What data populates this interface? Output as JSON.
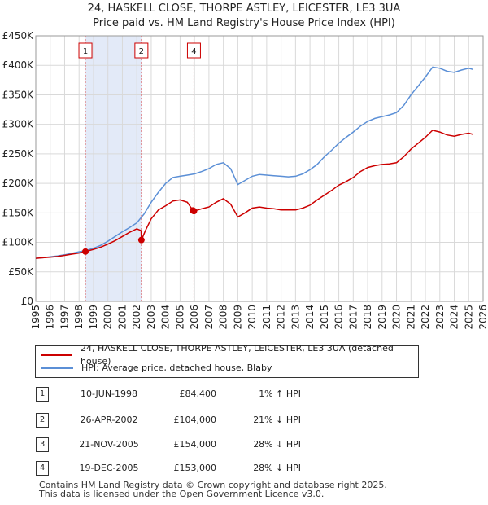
{
  "chart_data": {
    "type": "line",
    "title": "24, HASKELL CLOSE, THORPE ASTLEY, LEICESTER, LE3 3UA",
    "subtitle": "Price paid vs. HM Land Registry's House Price Index (HPI)",
    "x_range": [
      1995,
      2026
    ],
    "ylim": [
      0,
      450000
    ],
    "y_ticks": [
      {
        "value": 0,
        "label": "£0"
      },
      {
        "value": 50000,
        "label": "£50K"
      },
      {
        "value": 100000,
        "label": "£100K"
      },
      {
        "value": 150000,
        "label": "£150K"
      },
      {
        "value": 200000,
        "label": "£200K"
      },
      {
        "value": 250000,
        "label": "£250K"
      },
      {
        "value": 300000,
        "label": "£300K"
      },
      {
        "value": 350000,
        "label": "£350K"
      },
      {
        "value": 400000,
        "label": "£400K"
      },
      {
        "value": 450000,
        "label": "£450K"
      }
    ],
    "x_ticks": [
      "1995",
      "1996",
      "1997",
      "1998",
      "1999",
      "2000",
      "2001",
      "2002",
      "2003",
      "2004",
      "2005",
      "2006",
      "2007",
      "2008",
      "2009",
      "2010",
      "2011",
      "2012",
      "2013",
      "2014",
      "2015",
      "2016",
      "2017",
      "2018",
      "2019",
      "2020",
      "2021",
      "2022",
      "2023",
      "2024",
      "2025",
      "2026"
    ],
    "grid": true,
    "highlight_span": [
      1998.44,
      2002.32
    ],
    "series": [
      {
        "name": "24, HASKELL CLOSE, THORPE ASTLEY, LEICESTER, LE3 3UA (detached house)",
        "color": "#cc0000",
        "points": [
          [
            1995.0,
            73000
          ],
          [
            1995.5,
            74000
          ],
          [
            1996.0,
            75000
          ],
          [
            1996.5,
            76000
          ],
          [
            1997.0,
            78000
          ],
          [
            1997.5,
            80000
          ],
          [
            1998.0,
            82000
          ],
          [
            1998.44,
            84400
          ],
          [
            1999.0,
            88000
          ],
          [
            1999.5,
            92000
          ],
          [
            2000.0,
            97000
          ],
          [
            2000.5,
            103000
          ],
          [
            2001.0,
            110000
          ],
          [
            2001.5,
            117000
          ],
          [
            2002.0,
            123000
          ],
          [
            2002.3,
            120000
          ],
          [
            2002.32,
            104000
          ],
          [
            2002.6,
            120000
          ],
          [
            2003.0,
            140000
          ],
          [
            2003.5,
            155000
          ],
          [
            2004.0,
            162000
          ],
          [
            2004.5,
            170000
          ],
          [
            2005.0,
            172000
          ],
          [
            2005.5,
            168000
          ],
          [
            2005.89,
            154000
          ],
          [
            2005.96,
            153000
          ],
          [
            2006.5,
            157000
          ],
          [
            2007.0,
            160000
          ],
          [
            2007.5,
            168000
          ],
          [
            2008.0,
            174000
          ],
          [
            2008.5,
            165000
          ],
          [
            2009.0,
            143000
          ],
          [
            2009.5,
            150000
          ],
          [
            2010.0,
            158000
          ],
          [
            2010.5,
            160000
          ],
          [
            2011.0,
            158000
          ],
          [
            2011.5,
            157000
          ],
          [
            2012.0,
            155000
          ],
          [
            2012.5,
            155000
          ],
          [
            2013.0,
            155000
          ],
          [
            2013.5,
            158000
          ],
          [
            2014.0,
            163000
          ],
          [
            2014.5,
            172000
          ],
          [
            2015.0,
            180000
          ],
          [
            2015.5,
            188000
          ],
          [
            2016.0,
            197000
          ],
          [
            2016.5,
            203000
          ],
          [
            2017.0,
            210000
          ],
          [
            2017.5,
            220000
          ],
          [
            2018.0,
            227000
          ],
          [
            2018.5,
            230000
          ],
          [
            2019.0,
            232000
          ],
          [
            2019.5,
            233000
          ],
          [
            2020.0,
            235000
          ],
          [
            2020.5,
            245000
          ],
          [
            2021.0,
            258000
          ],
          [
            2021.5,
            268000
          ],
          [
            2022.0,
            278000
          ],
          [
            2022.5,
            290000
          ],
          [
            2023.0,
            287000
          ],
          [
            2023.5,
            282000
          ],
          [
            2024.0,
            280000
          ],
          [
            2024.5,
            283000
          ],
          [
            2025.0,
            285000
          ],
          [
            2025.3,
            283000
          ]
        ]
      },
      {
        "name": "HPI: Average price, detached house, Blaby",
        "color": "#5b8fd6",
        "points": [
          [
            1995.0,
            73000
          ],
          [
            1995.5,
            74000
          ],
          [
            1996.0,
            75500
          ],
          [
            1996.5,
            77000
          ],
          [
            1997.0,
            79000
          ],
          [
            1997.5,
            81500
          ],
          [
            1998.0,
            84000
          ],
          [
            1998.5,
            86500
          ],
          [
            1999.0,
            90000
          ],
          [
            1999.5,
            95000
          ],
          [
            2000.0,
            102000
          ],
          [
            2000.5,
            110000
          ],
          [
            2001.0,
            118000
          ],
          [
            2001.5,
            125000
          ],
          [
            2002.0,
            133000
          ],
          [
            2002.5,
            148000
          ],
          [
            2003.0,
            168000
          ],
          [
            2003.5,
            185000
          ],
          [
            2004.0,
            200000
          ],
          [
            2004.5,
            210000
          ],
          [
            2005.0,
            212000
          ],
          [
            2005.5,
            214000
          ],
          [
            2006.0,
            216000
          ],
          [
            2006.5,
            220000
          ],
          [
            2007.0,
            225000
          ],
          [
            2007.5,
            232000
          ],
          [
            2008.0,
            235000
          ],
          [
            2008.5,
            225000
          ],
          [
            2009.0,
            198000
          ],
          [
            2009.5,
            205000
          ],
          [
            2010.0,
            212000
          ],
          [
            2010.5,
            215000
          ],
          [
            2011.0,
            214000
          ],
          [
            2011.5,
            213000
          ],
          [
            2012.0,
            212000
          ],
          [
            2012.5,
            211000
          ],
          [
            2013.0,
            212000
          ],
          [
            2013.5,
            216000
          ],
          [
            2014.0,
            223000
          ],
          [
            2014.5,
            232000
          ],
          [
            2015.0,
            245000
          ],
          [
            2015.5,
            256000
          ],
          [
            2016.0,
            268000
          ],
          [
            2016.5,
            278000
          ],
          [
            2017.0,
            287000
          ],
          [
            2017.5,
            297000
          ],
          [
            2018.0,
            305000
          ],
          [
            2018.5,
            310000
          ],
          [
            2019.0,
            313000
          ],
          [
            2019.5,
            316000
          ],
          [
            2020.0,
            320000
          ],
          [
            2020.5,
            332000
          ],
          [
            2021.0,
            350000
          ],
          [
            2021.5,
            365000
          ],
          [
            2022.0,
            380000
          ],
          [
            2022.5,
            397000
          ],
          [
            2023.0,
            395000
          ],
          [
            2023.5,
            390000
          ],
          [
            2024.0,
            388000
          ],
          [
            2024.5,
            392000
          ],
          [
            2025.0,
            395000
          ],
          [
            2025.3,
            393000
          ]
        ]
      }
    ],
    "sale_markers": [
      {
        "label": "1",
        "x": 1998.44,
        "y": 84400,
        "box": true
      },
      {
        "label": "2",
        "x": 2002.32,
        "y": 104000,
        "box": true
      },
      {
        "label": "3",
        "x": 2005.89,
        "y": 154000,
        "box": false
      },
      {
        "label": "4",
        "x": 2005.96,
        "y": 153000,
        "box": true
      }
    ]
  },
  "legend": {
    "property_label": "24, HASKELL CLOSE, THORPE ASTLEY, LEICESTER, LE3 3UA (detached house)",
    "hpi_label": "HPI: Average price, detached house, Blaby",
    "property_color": "#cc0000",
    "hpi_color": "#5b8fd6"
  },
  "sales": [
    {
      "num": "1",
      "date": "10-JUN-1998",
      "price": "£84,400",
      "hpi": "1% ↑ HPI"
    },
    {
      "num": "2",
      "date": "26-APR-2002",
      "price": "£104,000",
      "hpi": "21% ↓ HPI"
    },
    {
      "num": "3",
      "date": "21-NOV-2005",
      "price": "£154,000",
      "hpi": "28% ↓ HPI"
    },
    {
      "num": "4",
      "date": "19-DEC-2005",
      "price": "£153,000",
      "hpi": "28% ↓ HPI"
    }
  ],
  "footer": {
    "line1": "Contains HM Land Registry data © Crown copyright and database right 2025.",
    "line2": "This data is licensed under the Open Government Licence v3.0."
  }
}
